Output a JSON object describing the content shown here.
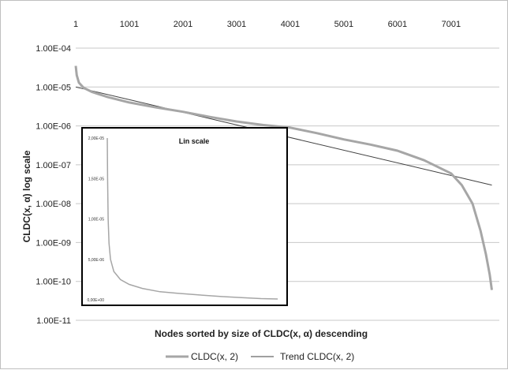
{
  "chart_data": {
    "type": "line",
    "title": "",
    "xlabel": "Nodes sorted by size of CLDC(x, α) descending",
    "ylabel": "CLDC(x, α) log scale",
    "y_scale": "log",
    "ylim": [
      1e-11,
      0.0001
    ],
    "xlim": [
      1,
      7900
    ],
    "x_axis_position": "top",
    "x_ticks": [
      "1",
      "1001",
      "2001",
      "3001",
      "4001",
      "5001",
      "6001",
      "7001"
    ],
    "y_ticks": [
      "1.00E-04",
      "1.00E-05",
      "1.00E-06",
      "1.00E-07",
      "1.00E-08",
      "1.00E-09",
      "1.00E-10",
      "1.00E-11"
    ],
    "grid": "horizontal",
    "legend_position": "bottom",
    "colors": {
      "series": "#a6a6a6",
      "trend": "#404040",
      "grid": "#c8c8c8"
    },
    "series": [
      {
        "name": "CLDC(x, 2)",
        "points": [
          [
            1,
            3.5e-05
          ],
          [
            20,
            2e-05
          ],
          [
            60,
            1.3e-05
          ],
          [
            150,
            9.5e-06
          ],
          [
            300,
            7.5e-06
          ],
          [
            600,
            5.5e-06
          ],
          [
            1000,
            4e-06
          ],
          [
            1500,
            3e-06
          ],
          [
            2000,
            2.3e-06
          ],
          [
            2500,
            1.7e-06
          ],
          [
            3000,
            1.3e-06
          ],
          [
            3500,
            1.05e-06
          ],
          [
            4000,
            9e-07
          ],
          [
            4500,
            6.5e-07
          ],
          [
            5000,
            4.5e-07
          ],
          [
            5500,
            3.3e-07
          ],
          [
            6000,
            2.3e-07
          ],
          [
            6500,
            1.3e-07
          ],
          [
            7000,
            6e-08
          ],
          [
            7200,
            3e-08
          ],
          [
            7400,
            1e-08
          ],
          [
            7550,
            2e-09
          ],
          [
            7650,
            5e-10
          ],
          [
            7720,
            1.5e-10
          ],
          [
            7760,
            6e-11
          ]
        ]
      },
      {
        "name": "Trend CLDC(x, 2)",
        "points": [
          [
            1,
            1e-05
          ],
          [
            7760,
            3e-08
          ]
        ]
      }
    ],
    "inset": {
      "title": "Lin scale",
      "y_scale": "linear",
      "ylim": [
        0,
        2e-05
      ],
      "y_ticks": [
        "2,00E-05",
        "1,50E-05",
        "1,00E-05",
        "5,00E-06",
        "0,00E+00"
      ],
      "series_points": [
        [
          1,
          2e-05
        ],
        [
          15,
          1.5e-05
        ],
        [
          40,
          1e-05
        ],
        [
          80,
          7e-06
        ],
        [
          150,
          5e-06
        ],
        [
          300,
          3.5e-06
        ],
        [
          600,
          2.5e-06
        ],
        [
          1000,
          1.9e-06
        ],
        [
          1600,
          1.4e-06
        ],
        [
          2400,
          1e-06
        ],
        [
          3200,
          8e-07
        ],
        [
          4200,
          6e-07
        ],
        [
          5200,
          4e-07
        ],
        [
          6200,
          2.5e-07
        ],
        [
          7000,
          1.5e-07
        ],
        [
          7760,
          1e-07
        ]
      ]
    }
  }
}
